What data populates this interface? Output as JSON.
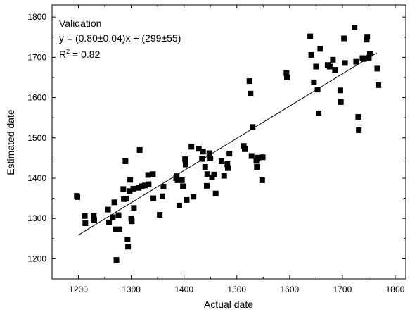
{
  "chart_data": {
    "type": "scatter",
    "title": "",
    "xlabel": "Actual date",
    "ylabel": "Estimated date",
    "xlim": [
      1150,
      1820
    ],
    "ylim": [
      1150,
      1830
    ],
    "xticks": [
      1200,
      1300,
      1400,
      1500,
      1600,
      1700,
      1800
    ],
    "yticks": [
      1200,
      1300,
      1400,
      1500,
      1600,
      1700,
      1800
    ],
    "minor_ticks": true,
    "grid": false,
    "marker": "square",
    "marker_color": "#000000",
    "annotations": {
      "title": "Validation",
      "equation": "y = (0.80±0.04)x + (299±55)",
      "r2_prefix": "R",
      "r2_sup": "2",
      "r2_value": " = 0.82"
    },
    "fit_line": {
      "slope": 0.8,
      "intercept": 299,
      "x_range": [
        1200,
        1765
      ]
    },
    "points": [
      [
        1197,
        1356
      ],
      [
        1198,
        1353
      ],
      [
        1212,
        1306
      ],
      [
        1213,
        1288
      ],
      [
        1229,
        1307
      ],
      [
        1230,
        1296
      ],
      [
        1256,
        1322
      ],
      [
        1258,
        1290
      ],
      [
        1265,
        1303
      ],
      [
        1268,
        1340
      ],
      [
        1270,
        1273
      ],
      [
        1272,
        1197
      ],
      [
        1276,
        1308
      ],
      [
        1278,
        1273
      ],
      [
        1285,
        1373
      ],
      [
        1286,
        1348
      ],
      [
        1289,
        1442
      ],
      [
        1290,
        1349
      ],
      [
        1293,
        1248
      ],
      [
        1294,
        1230
      ],
      [
        1297,
        1368
      ],
      [
        1298,
        1396
      ],
      [
        1300,
        1300
      ],
      [
        1301,
        1293
      ],
      [
        1304,
        1374
      ],
      [
        1305,
        1326
      ],
      [
        1314,
        1376
      ],
      [
        1316,
        1470
      ],
      [
        1320,
        1380
      ],
      [
        1326,
        1382
      ],
      [
        1332,
        1408
      ],
      [
        1333,
        1385
      ],
      [
        1341,
        1410
      ],
      [
        1342,
        1350
      ],
      [
        1354,
        1309
      ],
      [
        1359,
        1355
      ],
      [
        1361,
        1379
      ],
      [
        1385,
        1400
      ],
      [
        1386,
        1405
      ],
      [
        1388,
        1395
      ],
      [
        1391,
        1332
      ],
      [
        1396,
        1395
      ],
      [
        1398,
        1380
      ],
      [
        1402,
        1447
      ],
      [
        1403,
        1434
      ],
      [
        1405,
        1346
      ],
      [
        1414,
        1478
      ],
      [
        1418,
        1354
      ],
      [
        1428,
        1473
      ],
      [
        1434,
        1448
      ],
      [
        1436,
        1466
      ],
      [
        1440,
        1428
      ],
      [
        1443,
        1381
      ],
      [
        1444,
        1410
      ],
      [
        1448,
        1462
      ],
      [
        1450,
        1449
      ],
      [
        1453,
        1402
      ],
      [
        1457,
        1409
      ],
      [
        1460,
        1362
      ],
      [
        1471,
        1442
      ],
      [
        1476,
        1406
      ],
      [
        1482,
        1435
      ],
      [
        1483,
        1425
      ],
      [
        1486,
        1461
      ],
      [
        1513,
        1480
      ],
      [
        1515,
        1472
      ],
      [
        1524,
        1641
      ],
      [
        1526,
        1610
      ],
      [
        1528,
        1455
      ],
      [
        1530,
        1527
      ],
      [
        1537,
        1443
      ],
      [
        1538,
        1428
      ],
      [
        1540,
        1451
      ],
      [
        1548,
        1395
      ],
      [
        1549,
        1452
      ],
      [
        1594,
        1661
      ],
      [
        1595,
        1650
      ],
      [
        1639,
        1752
      ],
      [
        1641,
        1706
      ],
      [
        1646,
        1638
      ],
      [
        1650,
        1677
      ],
      [
        1653,
        1620
      ],
      [
        1655,
        1561
      ],
      [
        1658,
        1721
      ],
      [
        1672,
        1681
      ],
      [
        1676,
        1677
      ],
      [
        1682,
        1694
      ],
      [
        1686,
        1669
      ],
      [
        1696,
        1618
      ],
      [
        1697,
        1589
      ],
      [
        1703,
        1747
      ],
      [
        1705,
        1686
      ],
      [
        1723,
        1774
      ],
      [
        1726,
        1689
      ],
      [
        1730,
        1552
      ],
      [
        1731,
        1519
      ],
      [
        1738,
        1698
      ],
      [
        1741,
        1696
      ],
      [
        1746,
        1744
      ],
      [
        1747,
        1751
      ],
      [
        1750,
        1699
      ],
      [
        1752,
        1709
      ],
      [
        1766,
        1672
      ],
      [
        1768,
        1631
      ]
    ]
  }
}
